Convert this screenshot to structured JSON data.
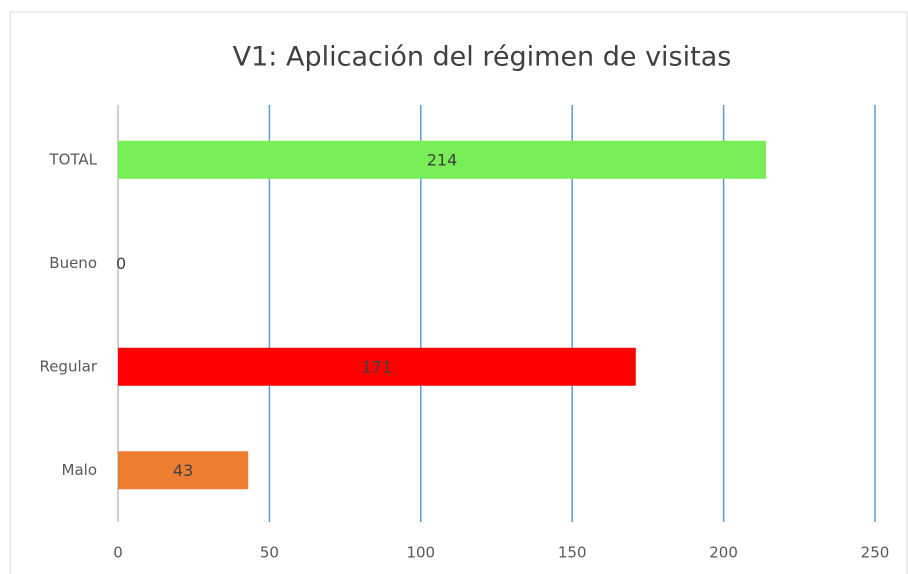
{
  "chart_data": {
    "type": "bar",
    "orientation": "horizontal",
    "title": "V1: Aplicación del régimen de visitas",
    "categories": [
      "TOTAL",
      "Bueno",
      "Regular",
      "Malo"
    ],
    "values": [
      214,
      0,
      171,
      43
    ],
    "colors": [
      "#77ee55",
      null,
      "#ff0000",
      "#ed7d31"
    ],
    "xlim": [
      0,
      250
    ],
    "xticks": [
      0,
      50,
      100,
      150,
      200,
      250
    ],
    "grid": true
  }
}
